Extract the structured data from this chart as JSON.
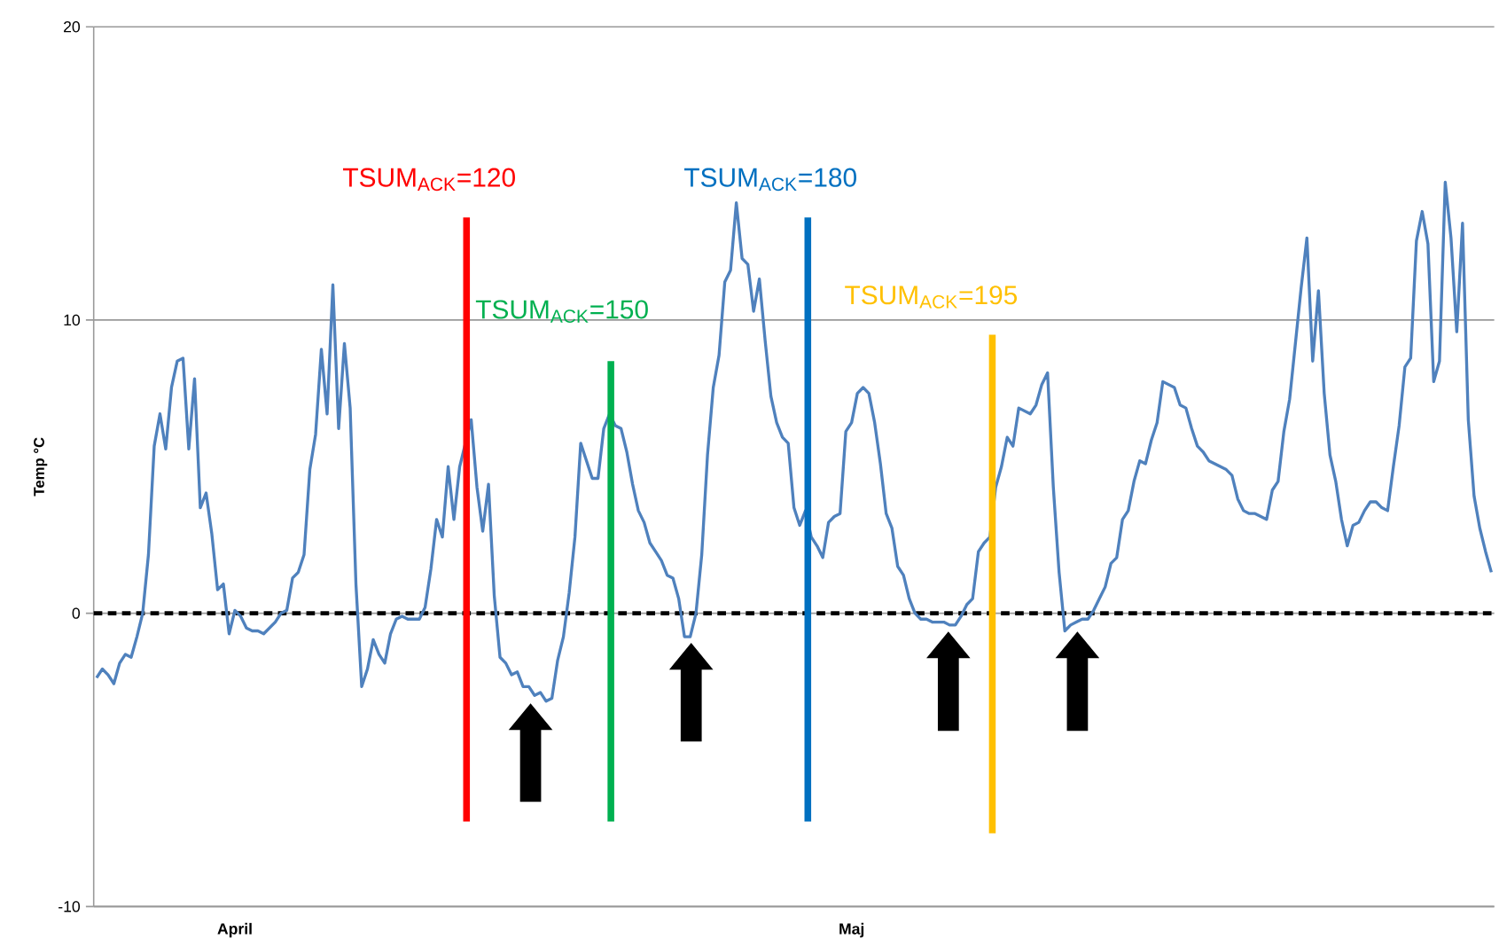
{
  "chart_data": {
    "type": "line",
    "ylabel": "Temp °C",
    "categories": [
      null,
      null,
      null,
      null,
      null,
      null,
      null,
      null,
      null,
      null,
      null,
      null,
      null,
      null,
      null,
      null,
      null,
      null,
      null,
      null,
      null,
      null,
      null,
      null,
      "April",
      null,
      null,
      null,
      null,
      null,
      null,
      null,
      null,
      null,
      null,
      null,
      null,
      null,
      null,
      null,
      null,
      null,
      null,
      null,
      null,
      null,
      null,
      null,
      null,
      null,
      null,
      null,
      null,
      null,
      null,
      null,
      null,
      null,
      null,
      null,
      null,
      null,
      null,
      null,
      null,
      null,
      null,
      null,
      null,
      null,
      null,
      null,
      null,
      null,
      null,
      null,
      null,
      null,
      null,
      null,
      null,
      null,
      null,
      null,
      null,
      null,
      null,
      null,
      null,
      null,
      null,
      null,
      null,
      null,
      null,
      null,
      null,
      null,
      null,
      null,
      null,
      null,
      null,
      null,
      null,
      null,
      null,
      null,
      null,
      null,
      null,
      null,
      null,
      null,
      null,
      null,
      null,
      null,
      null,
      null,
      null,
      null,
      null,
      null,
      null,
      null,
      null,
      null,
      null,
      null,
      null,
      "Maj",
      null,
      null,
      null,
      null,
      null,
      null,
      null,
      null,
      null,
      null,
      null,
      null,
      null,
      null,
      null,
      null,
      null,
      null,
      null,
      null,
      null,
      null,
      null,
      null,
      null,
      null,
      null,
      null,
      null,
      null,
      null,
      null,
      null,
      null,
      null,
      null,
      null,
      null,
      null,
      null,
      null,
      null,
      null,
      null,
      null,
      null,
      null,
      null,
      null,
      null,
      null,
      null,
      null,
      null,
      null,
      null,
      null,
      null,
      null,
      null,
      null,
      null,
      null,
      null,
      null,
      null,
      null,
      null,
      null,
      null,
      null,
      null,
      null,
      null,
      null,
      null,
      null,
      null,
      null,
      null,
      null,
      null,
      null,
      null,
      null,
      null,
      null,
      null,
      null,
      null,
      null,
      null,
      null,
      null,
      null,
      null,
      null,
      null,
      null,
      null,
      null,
      null,
      null,
      null,
      null,
      null,
      null,
      null,
      null,
      null,
      null
    ],
    "ylim": [
      -10,
      20
    ],
    "yticks": [
      -10,
      0,
      10,
      20
    ],
    "grid": "y",
    "ref_lines": [
      {
        "axis": "y",
        "value": 0,
        "color": "#000000",
        "line_style": "dashed"
      }
    ],
    "annotations": [
      "TSUM$_{ACK}$=120",
      "TSUM$_{ACK}$=150",
      "TSUM$_{ACK}$=180",
      "TSUM$_{ACK}$=195"
    ],
    "series": [
      {
        "color": "#4f81bd",
        "values": [
          -2.2,
          -1.9,
          -2.1,
          -2.4,
          -1.7,
          -1.4,
          -1.5,
          -0.8,
          0,
          2,
          5.7,
          6.8,
          5.6,
          7.7,
          8.6,
          8.7,
          5.6,
          8,
          3.6,
          4.1,
          2.7,
          0.8,
          1,
          -0.7,
          0.1,
          -0.1,
          -0.5,
          -0.6,
          -0.6,
          -0.7,
          -0.5,
          -0.3,
          0,
          0.1,
          1.2,
          1.4,
          2,
          4.9,
          6.1,
          9,
          6.8,
          11.2,
          6.3,
          9.2,
          7,
          1,
          -2.5,
          -1.9,
          -0.9,
          -1.4,
          -1.7,
          -0.7,
          -0.2,
          -0.1,
          -0.2,
          -0.2,
          -0.2,
          0.2,
          1.5,
          3.2,
          2.6,
          5,
          3.2,
          5,
          null,
          6.6,
          4.3,
          2.8,
          4.4,
          0.6,
          -1.5,
          -1.7,
          -2.1,
          -2,
          -2.5,
          -2.5,
          -2.8,
          -2.7,
          -3,
          -2.9,
          -1.6,
          -0.8,
          0.7,
          2.6,
          5.8,
          5.2,
          4.6,
          4.6,
          6.3,
          6.8,
          6.4,
          6.3,
          5.5,
          4.4,
          3.5,
          3.1,
          2.4,
          2.1,
          1.8,
          1.3,
          1.2,
          0.5,
          -0.8,
          -0.8,
          0,
          2,
          5.4,
          7.7,
          8.8,
          11.3,
          11.7,
          14,
          12.1,
          11.9,
          10.3,
          11.4,
          9.3,
          7.4,
          6.5,
          6,
          5.8,
          3.6,
          3,
          3.5,
          2.6,
          2.3,
          1.9,
          3.1,
          3.3,
          3.4,
          6.2,
          6.5,
          7.5,
          7.7,
          7.5,
          6.5,
          5.1,
          3.4,
          2.9,
          1.6,
          1.3,
          0.5,
          0,
          -0.2,
          -0.2,
          -0.3,
          -0.3,
          -0.3,
          -0.4,
          -0.4,
          -0.1,
          0.3,
          0.5,
          2.1,
          2.4,
          2.6,
          4.3,
          5,
          6,
          5.7,
          7,
          6.9,
          6.8,
          7.1,
          7.8,
          8.2,
          4.3,
          1.4,
          -0.6,
          -0.4,
          -0.3,
          -0.2,
          -0.2,
          0.1,
          0.5,
          0.9,
          1.7,
          1.9,
          3.2,
          3.5,
          4.5,
          5.2,
          5.1,
          5.9,
          6.5,
          7.9,
          7.8,
          7.7,
          7.1,
          7,
          6.3,
          5.7,
          5.5,
          5.2,
          5.1,
          5,
          4.9,
          4.7,
          3.9,
          3.5,
          3.4,
          3.4,
          3.3,
          3.2,
          4.2,
          4.5,
          6.2,
          7.3,
          9.2,
          11.1,
          12.8,
          8.6,
          11,
          7.5,
          5.4,
          4.5,
          3.2,
          2.3,
          3,
          3.1,
          3.5,
          3.8,
          3.8,
          3.6,
          3.5,
          5,
          6.4,
          8.4,
          8.7,
          12.7,
          13.7,
          12.6,
          7.9,
          8.6,
          14.7,
          12.8,
          9.6,
          13.3,
          6.6,
          4,
          2.9,
          2.1,
          1.4
        ]
      }
    ]
  }
}
